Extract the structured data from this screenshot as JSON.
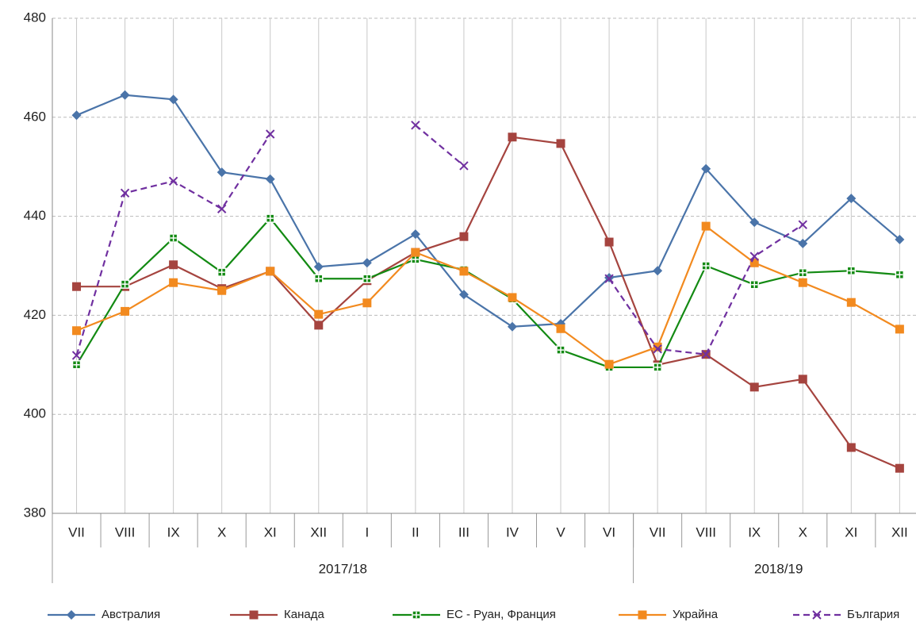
{
  "chart_data": {
    "type": "line",
    "categories": [
      "VII",
      "VIII",
      "IX",
      "X",
      "XI",
      "XII",
      "I",
      "II",
      "III",
      "IV",
      "V",
      "VI",
      "VII",
      "VIII",
      "IX",
      "X",
      "XI",
      "XII"
    ],
    "groups": [
      {
        "name": "2017/18",
        "count": 12
      },
      {
        "name": "2018/19",
        "count": 6
      }
    ],
    "ylim": [
      380,
      480
    ],
    "yticks": [
      380,
      400,
      420,
      440,
      460,
      480
    ],
    "grid": true,
    "legend": "bottom",
    "series": [
      {
        "name": "Австралия",
        "color": "#4a74a9",
        "marker": "diamond",
        "dash": false,
        "values": [
          460.4,
          464.5,
          463.6,
          448.9,
          447.5,
          429.8,
          430.6,
          436.4,
          424.2,
          417.7,
          418.3,
          427.6,
          429.0,
          449.6,
          438.8,
          434.5,
          443.6,
          435.3
        ]
      },
      {
        "name": "Канада",
        "color": "#a5443f",
        "marker": "square",
        "dash": false,
        "values": [
          425.8,
          425.8,
          430.2,
          425.4,
          428.9,
          418.0,
          427.0,
          432.7,
          435.9,
          456.0,
          454.7,
          434.8,
          410.0,
          412.1,
          405.5,
          407.1,
          393.3,
          389.1
        ]
      },
      {
        "name": "ЕС - Руан, Франция",
        "color": "#138a13",
        "marker": "plus-square",
        "dash": false,
        "values": [
          410.0,
          426.3,
          435.6,
          428.7,
          439.6,
          427.4,
          427.4,
          431.3,
          429.2,
          423.3,
          413.0,
          409.5,
          409.5,
          430.0,
          426.2,
          428.6,
          429.0,
          428.2
        ]
      },
      {
        "name": "Украйна",
        "color": "#f28a1f",
        "marker": "square",
        "dash": false,
        "values": [
          416.9,
          420.8,
          426.6,
          425.0,
          428.9,
          420.2,
          422.5,
          432.7,
          428.9,
          423.6,
          417.3,
          410.1,
          413.6,
          438.0,
          430.6,
          426.6,
          422.6,
          417.2
        ]
      },
      {
        "name": "България",
        "color": "#7030a0",
        "marker": "x",
        "dash": true,
        "values": [
          411.9,
          444.7,
          447.1,
          441.5,
          456.6,
          null,
          null,
          458.4,
          450.2,
          null,
          null,
          427.4,
          413.2,
          412.1,
          431.9,
          438.3,
          null,
          null
        ]
      }
    ]
  }
}
